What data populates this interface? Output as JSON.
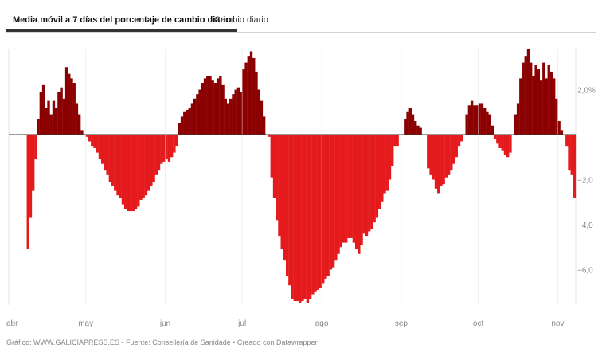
{
  "tabs": [
    {
      "label": "Media móvil a 7 días del porcentaje de cambio diario"
    },
    {
      "label": "Cambio diario"
    }
  ],
  "footer": {
    "text": "Gráfico: WWW.GALICIAPRESS.ES • Fuente: Consellería de Sanidade • Creado con Datawrapper"
  },
  "colors": {
    "positive": "#8b0000",
    "negative": "#e41a1c",
    "grid": "#e6e6e6",
    "axis": "#888888"
  },
  "chart_data": {
    "type": "bar",
    "title": "Media móvil a 7 días del porcentaje de cambio diario",
    "xlabel": "",
    "ylabel": "",
    "ylim": [
      -7.6,
      3.8
    ],
    "yticks": [
      {
        "value": 2,
        "label": "2,0%"
      },
      {
        "value": -2,
        "label": "−2,0"
      },
      {
        "value": -4,
        "label": "−4,0"
      },
      {
        "value": -6,
        "label": "−6,0"
      }
    ],
    "xticks": [
      {
        "index": 0,
        "label": "abr"
      },
      {
        "index": 30,
        "label": "may"
      },
      {
        "index": 61,
        "label": "jun"
      },
      {
        "index": 91,
        "label": "jul"
      },
      {
        "index": 122,
        "label": "ago"
      },
      {
        "index": 153,
        "label": "sep"
      },
      {
        "index": 183,
        "label": "oct"
      },
      {
        "index": 214,
        "label": "nov"
      }
    ],
    "values": [
      0,
      0,
      0,
      0,
      0,
      0,
      0,
      -5.1,
      -3.7,
      -2.5,
      -1.1,
      0.7,
      1.9,
      2.2,
      1.2,
      1.5,
      0.9,
      1.5,
      1.2,
      1.9,
      2.1,
      1.6,
      3.0,
      2.7,
      2.5,
      2.3,
      1.4,
      0.9,
      0.2,
      0,
      -0.1,
      -0.3,
      -0.5,
      -0.6,
      -0.8,
      -1.1,
      -1.3,
      -1.6,
      -1.8,
      -2.1,
      -2.3,
      -2.5,
      -2.7,
      -2.8,
      -3.1,
      -3.3,
      -3.4,
      -3.4,
      -3.4,
      -3.3,
      -3.2,
      -2.9,
      -2.8,
      -2.7,
      -2.5,
      -2.3,
      -2.1,
      -1.8,
      -1.6,
      -1.3,
      -1.2,
      -1.1,
      -1.2,
      -1.0,
      -0.8,
      -0.5,
      0.5,
      0.8,
      1.0,
      1.1,
      1.2,
      1.4,
      1.6,
      1.8,
      2.0,
      2.3,
      2.5,
      2.6,
      2.6,
      2.4,
      2.3,
      2.5,
      2.6,
      2.2,
      1.6,
      1.4,
      1.6,
      1.8,
      2.0,
      2.1,
      1.9,
      2.9,
      3.2,
      3.5,
      3.7,
      3.4,
      2.8,
      2.0,
      1.5,
      0.8,
      0,
      -0.1,
      -1.9,
      -2.8,
      -3.8,
      -4.5,
      -5.1,
      -5.6,
      -6.3,
      -6.7,
      -7.3,
      -7.4,
      -7.4,
      -7.5,
      -7.4,
      -7.3,
      -7.5,
      -7.3,
      -7.1,
      -7.0,
      -6.9,
      -6.8,
      -6.6,
      -6.4,
      -6.3,
      -6.0,
      -5.9,
      -5.6,
      -5.3,
      -5.0,
      -4.8,
      -4.8,
      -4.6,
      -4.6,
      -4.8,
      -5.1,
      -5.3,
      -4.9,
      -4.4,
      -4.5,
      -4.3,
      -4.2,
      -3.9,
      -3.7,
      -3.3,
      -3.0,
      -2.6,
      -2.5,
      -2.0,
      -1.4,
      -0.5,
      -0.5,
      0,
      0,
      0.7,
      1.0,
      1.2,
      0.9,
      0.6,
      0.4,
      0.3,
      0,
      0,
      -1.5,
      -1.8,
      -2.0,
      -2.4,
      -2.6,
      -2.3,
      -2.2,
      -1.9,
      -1.8,
      -1.6,
      -1.3,
      -1.0,
      -0.5,
      -0.3,
      0,
      0.9,
      1.3,
      1.5,
      1.3,
      1.3,
      1.4,
      1.4,
      1.2,
      1.0,
      0.9,
      0.4,
      -0.2,
      -0.4,
      -0.6,
      -0.7,
      -0.9,
      -1.0,
      -0.8,
      0,
      0.9,
      1.4,
      2.5,
      3.2,
      3.5,
      3.8,
      3.2,
      2.6,
      3.1,
      2.9,
      2.4,
      3.2,
      2.5,
      3.1,
      2.8,
      2.5,
      1.6,
      0.6,
      0.2,
      0,
      -0.5,
      -1.6,
      -1.8,
      -2.8
    ]
  }
}
